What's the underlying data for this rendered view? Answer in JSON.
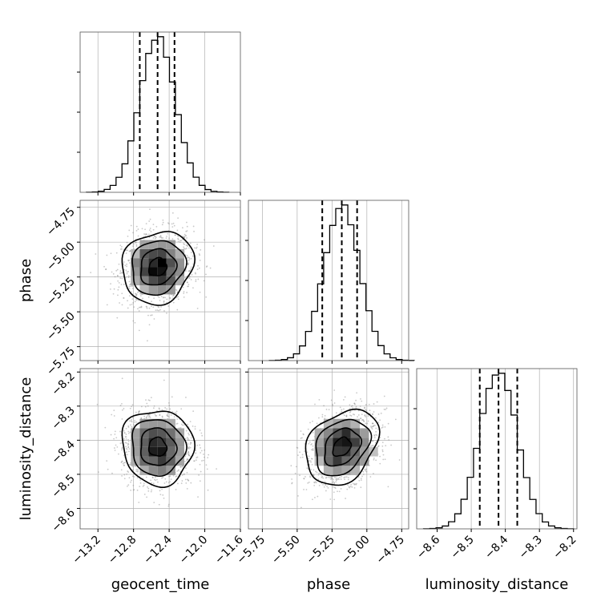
{
  "chart_data": {
    "type": "corner",
    "parameters": [
      "geocent_time",
      "phase",
      "luminosity_distance"
    ],
    "axes": {
      "geocent_time": {
        "label": "geocent_time",
        "range": [
          -13.4,
          -11.6
        ],
        "ticks": [
          -13.2,
          -12.8,
          -12.4,
          -12.0,
          -11.6
        ],
        "tick_labels": [
          "−13.2",
          "−12.8",
          "−12.4",
          "−12.0",
          "−11.6"
        ]
      },
      "phase": {
        "label": "phase",
        "range": [
          -5.85,
          -4.7
        ],
        "ticks": [
          -5.75,
          -5.5,
          -5.25,
          -5.0,
          -4.75
        ],
        "tick_labels": [
          "−5.75",
          "−5.50",
          "−5.25",
          "−5.00",
          "−4.75"
        ]
      },
      "luminosity_distance": {
        "label": "luminosity_distance",
        "range": [
          -8.66,
          -8.19
        ],
        "ticks": [
          -8.6,
          -8.5,
          -8.4,
          -8.3,
          -8.2
        ],
        "tick_labels": [
          "−8.6",
          "−8.5",
          "−8.4",
          "−8.3",
          "−8.2"
        ]
      }
    },
    "marginals": {
      "geocent_time": {
        "mean": -12.53,
        "sigma": 0.2,
        "quantiles": [
          -12.73,
          -12.53,
          -12.34
        ]
      },
      "phase": {
        "mean": -5.18,
        "sigma": 0.13,
        "quantiles": [
          -5.32,
          -5.18,
          -5.07
        ]
      },
      "luminosity_distance": {
        "mean": -8.42,
        "sigma": 0.055,
        "quantiles": [
          -8.475,
          -8.42,
          -8.365
        ]
      }
    },
    "joint": [
      {
        "x": "geocent_time",
        "y": "phase",
        "correlation": 0.12
      },
      {
        "x": "geocent_time",
        "y": "luminosity_distance",
        "correlation": -0.05
      },
      {
        "x": "phase",
        "y": "luminosity_distance",
        "correlation": 0.3
      }
    ],
    "style": {
      "line_color": "#000000",
      "grid": true,
      "grid_color": "#b0b0b0",
      "quantile_line_style": "dashed"
    }
  }
}
